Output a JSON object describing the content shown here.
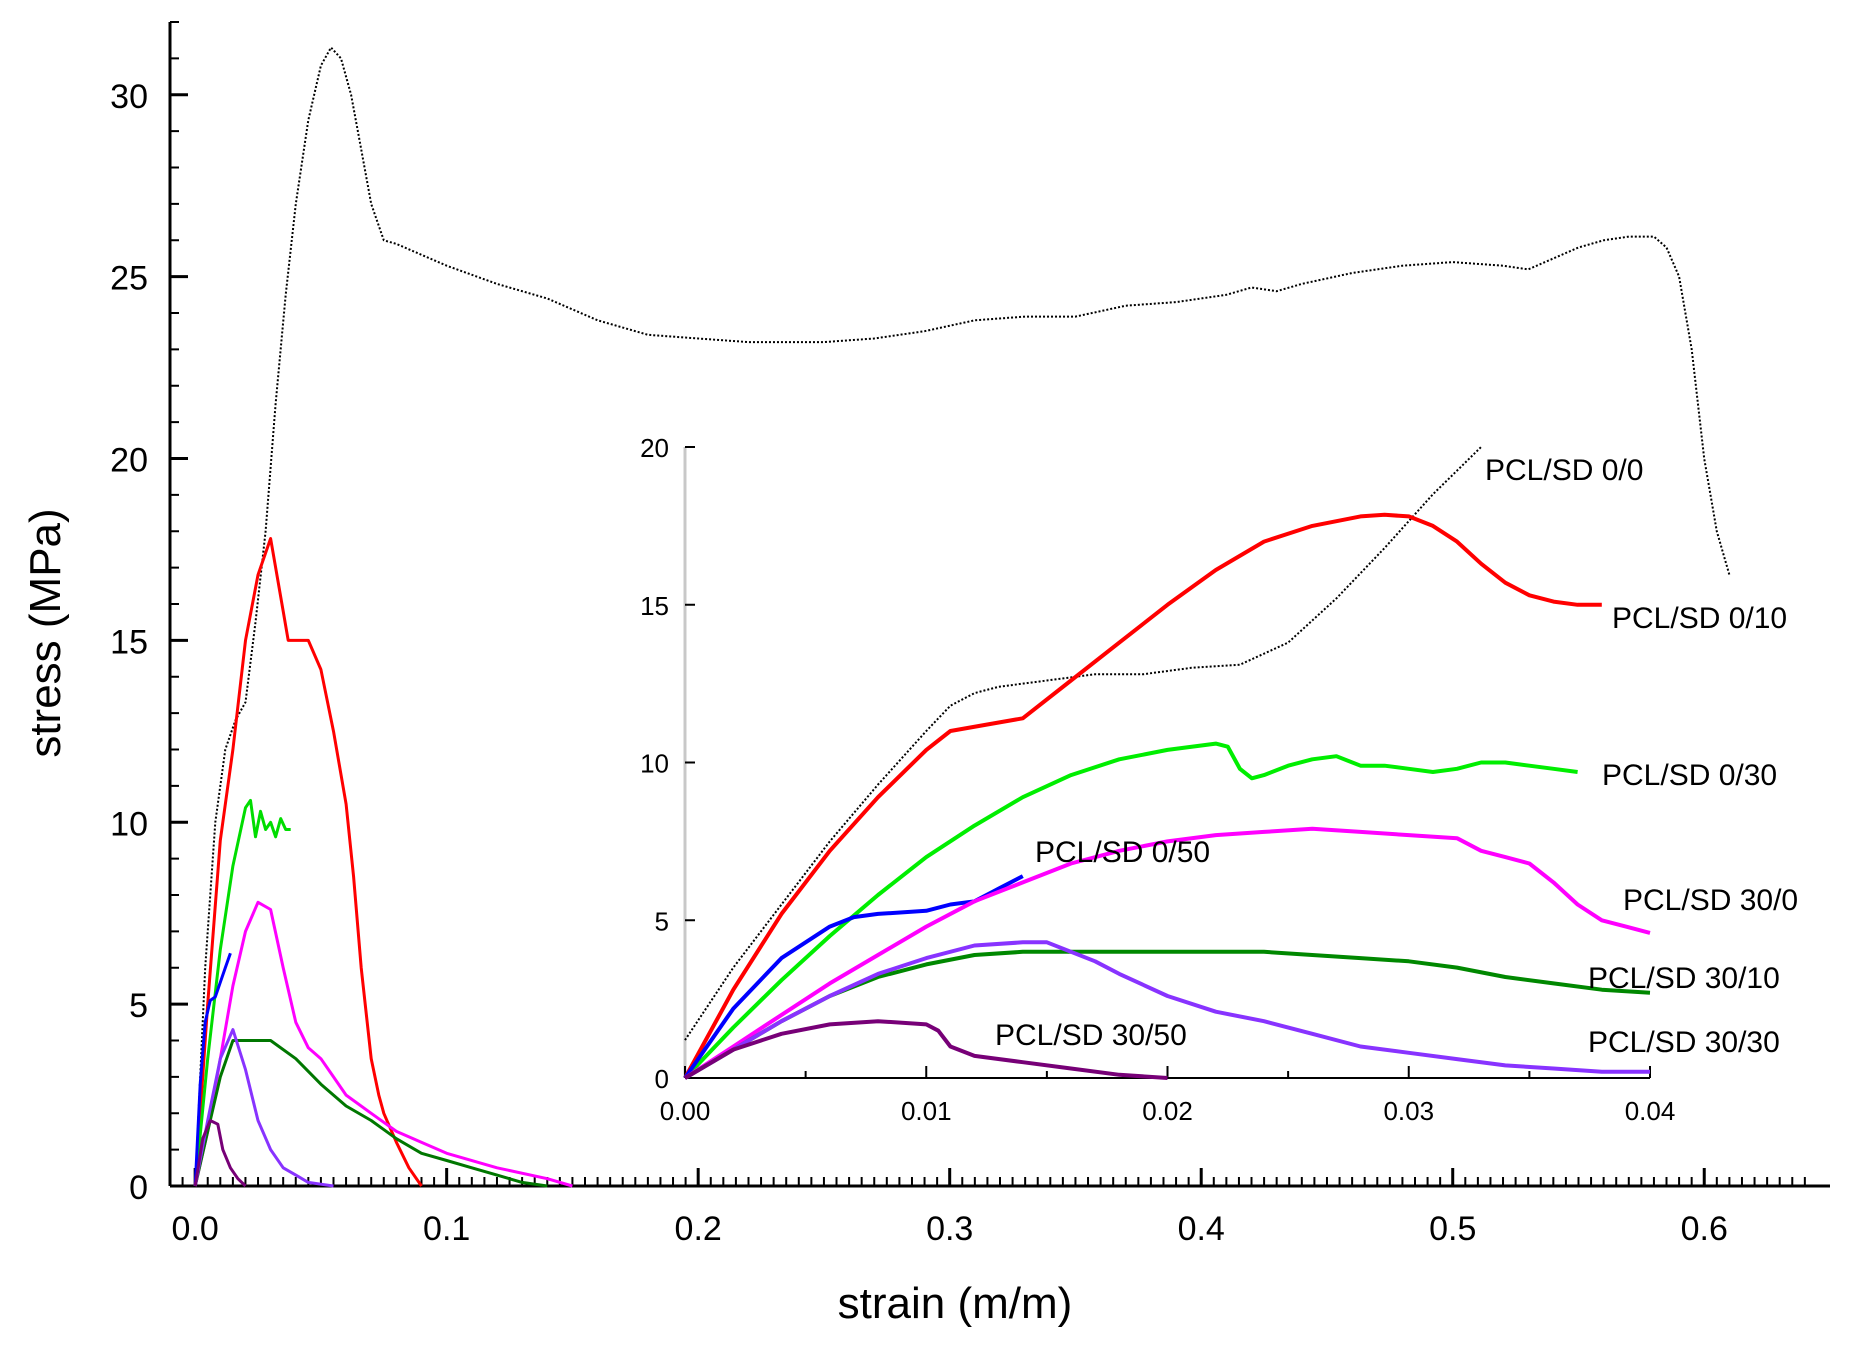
{
  "chart_data": [
    {
      "type": "line",
      "id": "main",
      "xlabel": "strain (m/m)",
      "ylabel": "stress (MPa)",
      "xlim": [
        -0.01,
        0.65
      ],
      "ylim": [
        0,
        32
      ],
      "xticks": [
        0.0,
        0.1,
        0.2,
        0.3,
        0.4,
        0.5,
        0.6
      ],
      "xtick_labels": [
        "0.0",
        "0.1",
        "0.2",
        "0.3",
        "0.4",
        "0.5",
        "0.6"
      ],
      "yticks": [
        0,
        5,
        10,
        15,
        20,
        25,
        30
      ],
      "ytick_labels": [
        "0",
        "5",
        "10",
        "15",
        "20",
        "25",
        "30"
      ],
      "legend": "none",
      "series": [
        {
          "name": "PCL/SD 0/0",
          "color": "#000000",
          "style": "dotted",
          "x": [
            0,
            0.004,
            0.008,
            0.012,
            0.016,
            0.02,
            0.024,
            0.028,
            0.032,
            0.036,
            0.04,
            0.045,
            0.05,
            0.054,
            0.058,
            0.062,
            0.066,
            0.07,
            0.075,
            0.08,
            0.09,
            0.1,
            0.12,
            0.14,
            0.16,
            0.18,
            0.2,
            0.22,
            0.25,
            0.27,
            0.29,
            0.31,
            0.33,
            0.35,
            0.37,
            0.39,
            0.41,
            0.42,
            0.43,
            0.44,
            0.46,
            0.48,
            0.5,
            0.52,
            0.53,
            0.55,
            0.56,
            0.57,
            0.58,
            0.585,
            0.59,
            0.595,
            0.6,
            0.605,
            0.61
          ],
          "y": [
            0,
            6,
            10,
            12,
            12.8,
            13.3,
            15.5,
            18,
            21.5,
            24.5,
            27,
            29.3,
            30.8,
            31.3,
            31,
            30,
            28.5,
            27,
            26,
            25.9,
            25.6,
            25.3,
            24.8,
            24.4,
            23.8,
            23.4,
            23.3,
            23.2,
            23.2,
            23.3,
            23.5,
            23.8,
            23.9,
            23.9,
            24.2,
            24.3,
            24.5,
            24.7,
            24.6,
            24.8,
            25.1,
            25.3,
            25.4,
            25.3,
            25.2,
            25.8,
            26.0,
            26.1,
            26.1,
            25.8,
            25.0,
            23.0,
            20.0,
            18.0,
            16.8
          ]
        },
        {
          "name": "PCL/SD 0/10",
          "color": "#ff0000",
          "style": "solid",
          "x": [
            0,
            0.005,
            0.01,
            0.015,
            0.02,
            0.025,
            0.03,
            0.035,
            0.037,
            0.04,
            0.045,
            0.05,
            0.055,
            0.06,
            0.063,
            0.066,
            0.07,
            0.073,
            0.075,
            0.08,
            0.085,
            0.09
          ],
          "y": [
            0,
            5,
            9.5,
            12,
            15,
            16.8,
            17.8,
            15.8,
            15.0,
            15.0,
            15.0,
            14.2,
            12.5,
            10.5,
            8.5,
            6.0,
            3.5,
            2.5,
            2.0,
            1.2,
            0.5,
            0
          ]
        },
        {
          "name": "PCL/SD 0/30",
          "color": "#00dd00",
          "style": "solid",
          "x": [
            0,
            0.005,
            0.01,
            0.015,
            0.02,
            0.022,
            0.024,
            0.026,
            0.028,
            0.03,
            0.032,
            0.034,
            0.036,
            0.038
          ],
          "y": [
            0,
            3.5,
            6.5,
            8.8,
            10.4,
            10.6,
            9.6,
            10.3,
            9.8,
            10.0,
            9.6,
            10.1,
            9.8,
            9.8
          ]
        },
        {
          "name": "PCL/SD 0/50",
          "color": "#0000ff",
          "style": "solid",
          "x": [
            0,
            0.002,
            0.004,
            0.006,
            0.008,
            0.01,
            0.012,
            0.014
          ],
          "y": [
            0,
            2.8,
            4.5,
            5.1,
            5.2,
            5.6,
            6.0,
            6.4
          ]
        },
        {
          "name": "PCL/SD 30/0",
          "color": "#ff00ff",
          "style": "solid",
          "x": [
            0,
            0.005,
            0.01,
            0.015,
            0.02,
            0.025,
            0.03,
            0.035,
            0.04,
            0.045,
            0.05,
            0.055,
            0.06,
            0.07,
            0.08,
            0.1,
            0.12,
            0.14,
            0.15
          ],
          "y": [
            0,
            1.5,
            3.5,
            5.5,
            7.0,
            7.8,
            7.6,
            6.0,
            4.5,
            3.8,
            3.5,
            3.0,
            2.5,
            2.0,
            1.5,
            0.9,
            0.5,
            0.2,
            0
          ]
        },
        {
          "name": "PCL/SD 30/10",
          "color": "#007700",
          "style": "solid",
          "x": [
            0,
            0.005,
            0.01,
            0.015,
            0.02,
            0.03,
            0.04,
            0.05,
            0.06,
            0.07,
            0.08,
            0.09,
            0.1,
            0.11,
            0.12,
            0.13,
            0.14
          ],
          "y": [
            0,
            1.5,
            3.0,
            4.0,
            4.0,
            4.0,
            3.5,
            2.8,
            2.2,
            1.8,
            1.3,
            0.9,
            0.7,
            0.5,
            0.3,
            0.1,
            0
          ]
        },
        {
          "name": "PCL/SD 30/30",
          "color": "#8833ff",
          "style": "solid",
          "x": [
            0,
            0.005,
            0.01,
            0.015,
            0.02,
            0.025,
            0.03,
            0.035,
            0.04,
            0.045,
            0.05,
            0.055
          ],
          "y": [
            0,
            1.8,
            3.5,
            4.3,
            3.2,
            1.8,
            1.0,
            0.5,
            0.3,
            0.1,
            0.05,
            0
          ]
        },
        {
          "name": "PCL/SD 30/50",
          "color": "#770077",
          "style": "solid",
          "x": [
            0,
            0.003,
            0.006,
            0.009,
            0.011,
            0.014,
            0.017,
            0.02
          ],
          "y": [
            0,
            1.3,
            1.8,
            1.7,
            1.0,
            0.5,
            0.2,
            0
          ]
        }
      ]
    },
    {
      "type": "line",
      "id": "inset",
      "xlim": [
        0,
        0.04
      ],
      "ylim": [
        0,
        20
      ],
      "xticks": [
        0.0,
        0.01,
        0.02,
        0.03,
        0.04
      ],
      "xtick_labels": [
        "0.00",
        "0.01",
        "0.02",
        "0.03",
        "0.04"
      ],
      "yticks": [
        0,
        5,
        10,
        15,
        20
      ],
      "ytick_labels": [
        "0",
        "5",
        "10",
        "15",
        "20"
      ],
      "series": [
        {
          "name": "PCL/SD 0/0",
          "label": "PCL/SD 0/0",
          "color": "#000000",
          "style": "dotted",
          "x": [
            0,
            0.002,
            0.004,
            0.006,
            0.008,
            0.01,
            0.011,
            0.012,
            0.013,
            0.015,
            0.017,
            0.019,
            0.021,
            0.023,
            0.025,
            0.027,
            0.029,
            0.031,
            0.033
          ],
          "y": [
            1.2,
            3.5,
            5.5,
            7.5,
            9.3,
            11.0,
            11.8,
            12.2,
            12.4,
            12.6,
            12.8,
            12.8,
            13.0,
            13.1,
            13.8,
            15.2,
            16.8,
            18.5,
            20.0
          ]
        },
        {
          "name": "PCL/SD 0/10",
          "label": "PCL/SD 0/10",
          "color": "#ff0000",
          "style": "solid",
          "x": [
            0,
            0.002,
            0.004,
            0.006,
            0.008,
            0.01,
            0.011,
            0.0125,
            0.014,
            0.016,
            0.018,
            0.02,
            0.022,
            0.024,
            0.026,
            0.028,
            0.029,
            0.03,
            0.031,
            0.032,
            0.033,
            0.034,
            0.035,
            0.036,
            0.037,
            0.038
          ],
          "y": [
            0,
            2.8,
            5.2,
            7.2,
            8.9,
            10.4,
            11.0,
            11.2,
            11.4,
            12.6,
            13.8,
            15.0,
            16.1,
            17.0,
            17.5,
            17.8,
            17.85,
            17.8,
            17.5,
            17.0,
            16.3,
            15.7,
            15.3,
            15.1,
            15.0,
            15.0
          ]
        },
        {
          "name": "PCL/SD 0/30",
          "label": "PCL/SD 0/30",
          "color": "#00ee00",
          "style": "solid",
          "x": [
            0,
            0.002,
            0.004,
            0.006,
            0.008,
            0.01,
            0.012,
            0.014,
            0.016,
            0.018,
            0.02,
            0.022,
            0.0225,
            0.023,
            0.0235,
            0.024,
            0.025,
            0.026,
            0.027,
            0.028,
            0.029,
            0.03,
            0.031,
            0.032,
            0.033,
            0.034,
            0.035,
            0.036,
            0.037
          ],
          "y": [
            0,
            1.6,
            3.1,
            4.5,
            5.8,
            7.0,
            8.0,
            8.9,
            9.6,
            10.1,
            10.4,
            10.6,
            10.5,
            9.8,
            9.5,
            9.6,
            9.9,
            10.1,
            10.2,
            9.9,
            9.9,
            9.8,
            9.7,
            9.8,
            10.0,
            10.0,
            9.9,
            9.8,
            9.7
          ]
        },
        {
          "name": "PCL/SD 0/50",
          "label": "PCL/SD 0/50",
          "color": "#0000ff",
          "style": "solid",
          "x": [
            0,
            0.002,
            0.004,
            0.006,
            0.007,
            0.008,
            0.01,
            0.011,
            0.012,
            0.013,
            0.014
          ],
          "y": [
            0,
            2.2,
            3.8,
            4.8,
            5.1,
            5.2,
            5.3,
            5.5,
            5.6,
            6.0,
            6.4
          ]
        },
        {
          "name": "PCL/SD 30/0",
          "label": "PCL/SD 30/0",
          "color": "#ff00ff",
          "style": "solid",
          "x": [
            0,
            0.002,
            0.004,
            0.006,
            0.008,
            0.01,
            0.012,
            0.014,
            0.016,
            0.018,
            0.02,
            0.022,
            0.024,
            0.026,
            0.028,
            0.03,
            0.032,
            0.033,
            0.034,
            0.035,
            0.036,
            0.037,
            0.038,
            0.039,
            0.04
          ],
          "y": [
            0,
            1.0,
            2.0,
            3.0,
            3.9,
            4.8,
            5.6,
            6.2,
            6.8,
            7.2,
            7.5,
            7.7,
            7.8,
            7.9,
            7.8,
            7.7,
            7.6,
            7.2,
            7.0,
            6.8,
            6.2,
            5.5,
            5.0,
            4.8,
            4.6
          ]
        },
        {
          "name": "PCL/SD 30/10",
          "label": "PCL/SD 30/10",
          "color": "#008800",
          "style": "solid",
          "x": [
            0,
            0.002,
            0.004,
            0.006,
            0.008,
            0.01,
            0.012,
            0.014,
            0.016,
            0.018,
            0.02,
            0.022,
            0.024,
            0.026,
            0.028,
            0.03,
            0.032,
            0.034,
            0.036,
            0.038,
            0.04
          ],
          "y": [
            0,
            0.9,
            1.8,
            2.6,
            3.2,
            3.6,
            3.9,
            4.0,
            4.0,
            4.0,
            4.0,
            4.0,
            4.0,
            3.9,
            3.8,
            3.7,
            3.5,
            3.2,
            3.0,
            2.8,
            2.7
          ]
        },
        {
          "name": "PCL/SD 30/30",
          "label": "PCL/SD 30/30",
          "color": "#8833ff",
          "style": "solid",
          "x": [
            0,
            0.002,
            0.004,
            0.006,
            0.008,
            0.01,
            0.012,
            0.014,
            0.015,
            0.016,
            0.017,
            0.018,
            0.02,
            0.022,
            0.024,
            0.026,
            0.028,
            0.03,
            0.032,
            0.034,
            0.036,
            0.038,
            0.04
          ],
          "y": [
            0,
            0.9,
            1.8,
            2.6,
            3.3,
            3.8,
            4.2,
            4.3,
            4.3,
            4.0,
            3.7,
            3.3,
            2.6,
            2.1,
            1.8,
            1.4,
            1.0,
            0.8,
            0.6,
            0.4,
            0.3,
            0.2,
            0.2
          ]
        },
        {
          "name": "PCL/SD 30/50",
          "label": "PCL/SD 30/50",
          "color": "#770077",
          "style": "solid",
          "x": [
            0,
            0.002,
            0.004,
            0.006,
            0.008,
            0.01,
            0.0105,
            0.011,
            0.012,
            0.014,
            0.016,
            0.018,
            0.02
          ],
          "y": [
            0,
            0.9,
            1.4,
            1.7,
            1.8,
            1.7,
            1.5,
            1.0,
            0.7,
            0.5,
            0.3,
            0.1,
            0.0
          ]
        }
      ]
    }
  ]
}
